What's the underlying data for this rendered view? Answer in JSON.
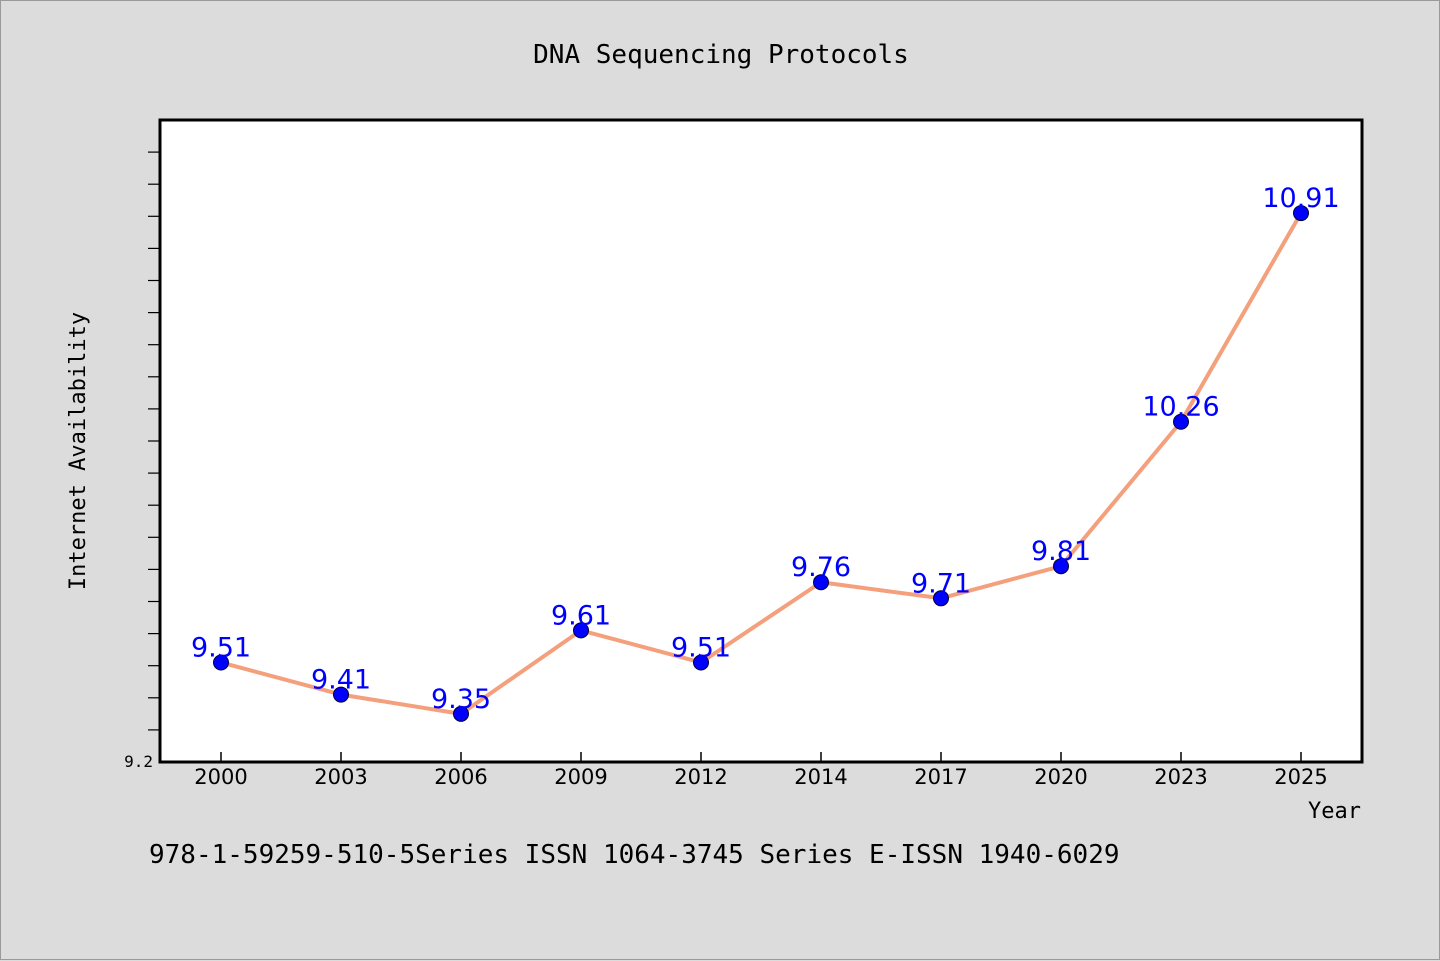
{
  "chart_data": {
    "type": "line",
    "title": "DNA Sequencing Protocols",
    "xlabel": "Year",
    "ylabel": "Internet Availability",
    "categories": [
      "2000",
      "2003",
      "2006",
      "2009",
      "2012",
      "2014",
      "2017",
      "2020",
      "2023",
      "2025"
    ],
    "series": [
      {
        "values": [
          9.51,
          9.41,
          9.35,
          9.61,
          9.51,
          9.76,
          9.71,
          9.81,
          10.26,
          10.91
        ],
        "labels": [
          "9.51",
          "9.41",
          "9.35",
          "9.61",
          "9.51",
          "9.76",
          "9.71",
          "9.81",
          "10.26",
          "10.91"
        ]
      }
    ],
    "ylim": [
      9.2,
      11.2
    ],
    "yticks_labeled": [
      "9.2"
    ],
    "grid": false,
    "legend": "none",
    "colors": {
      "line": "#f4a07c",
      "marker": "#0000ff",
      "data_label": "#0000ff",
      "plot_bg": "#ffffff",
      "page_bg": "#dcdcdc"
    }
  },
  "footnote": "978-1-59259-510-5Series ISSN 1064-3745 Series E-ISSN 1940-6029"
}
